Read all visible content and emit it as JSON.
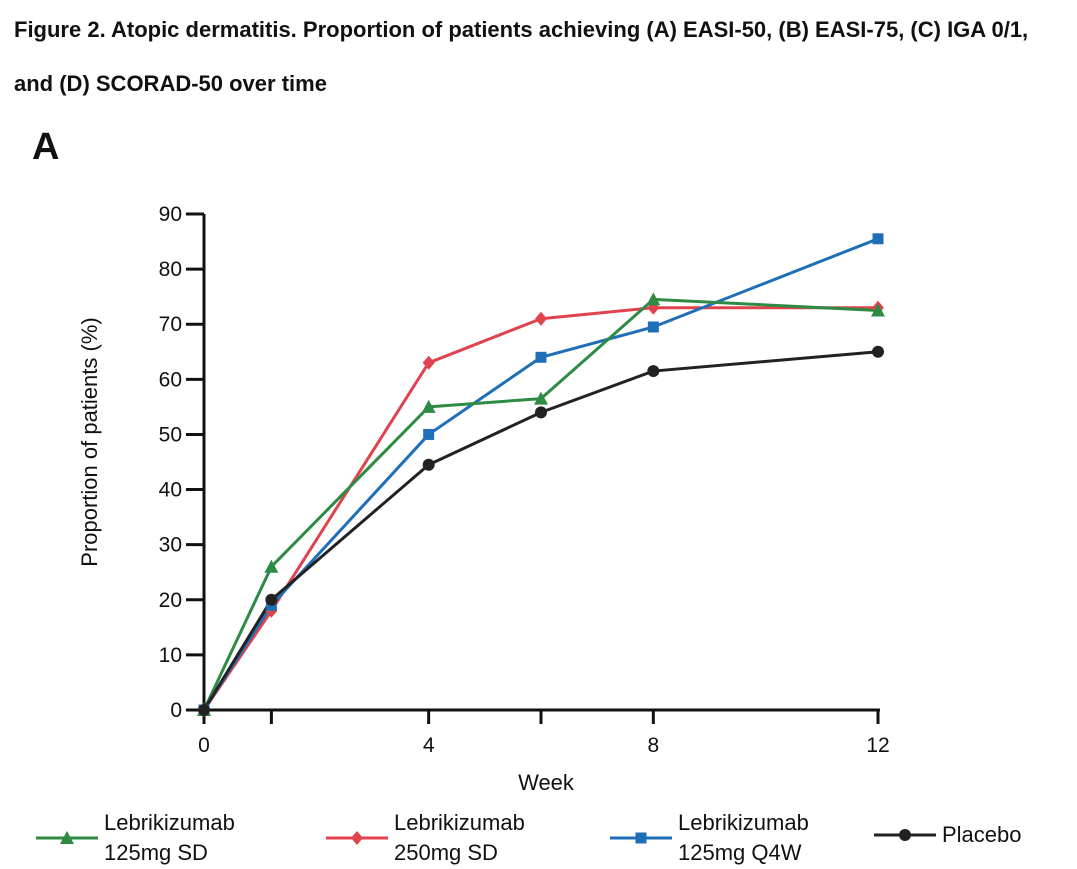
{
  "figure": {
    "title": "Figure 2. Atopic dermatitis. Proportion of patients achieving (A) EASI-50, (B) EASI-75, (C) IGA 0/1, and (D) SCORAD-50 over time",
    "panel_label": "A"
  },
  "chart_data": {
    "type": "line",
    "title": "",
    "xlabel": "Week",
    "ylabel": "Proportion of patients (%)",
    "xlim": [
      0,
      12
    ],
    "ylim": [
      0,
      90
    ],
    "xticks": [
      0,
      1.2,
      4,
      6,
      8,
      12
    ],
    "xtick_labels": [
      "0",
      "",
      "4",
      "",
      "8",
      "12"
    ],
    "yticks": [
      0,
      10,
      20,
      30,
      40,
      50,
      60,
      70,
      80,
      90
    ],
    "grid": false,
    "legend_position": "bottom",
    "series": [
      {
        "name": "Lebrikizumab\n125mg SD",
        "color": "#2e8b44",
        "marker": "triangle",
        "x": [
          0,
          1.2,
          4,
          6,
          8,
          12
        ],
        "values": [
          0,
          26,
          55,
          56.5,
          74.5,
          72.5
        ]
      },
      {
        "name": "Lebrikizumab\n250mg SD",
        "color": "#e0434d",
        "marker": "diamond",
        "x": [
          0,
          1.2,
          4,
          6,
          8,
          12
        ],
        "values": [
          0,
          18,
          63,
          71,
          73,
          73
        ]
      },
      {
        "name": "Lebrikizumab\n125mg Q4W",
        "color": "#1f6fb8",
        "marker": "square",
        "x": [
          0,
          1.2,
          4,
          6,
          8,
          12
        ],
        "values": [
          0,
          19,
          50,
          64,
          69.5,
          85.5
        ]
      },
      {
        "name": "Placebo",
        "color": "#222222",
        "marker": "circle",
        "x": [
          0,
          1.2,
          4,
          6,
          8,
          12
        ],
        "values": [
          0,
          20,
          44.5,
          54,
          61.5,
          65
        ]
      }
    ]
  }
}
